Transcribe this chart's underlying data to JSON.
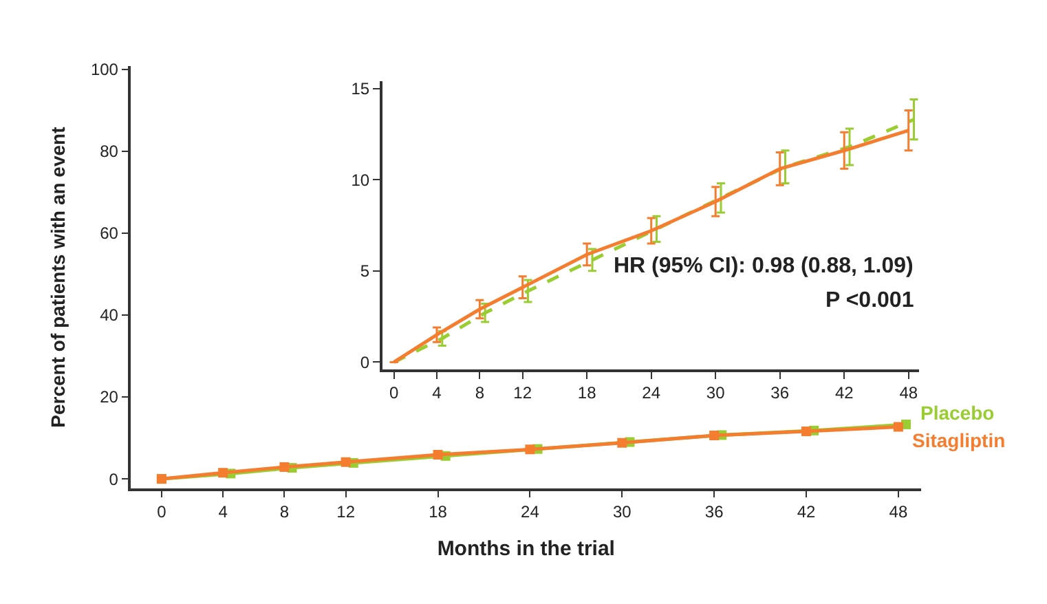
{
  "chart_data": [
    {
      "type": "line",
      "xlabel": "Months in the trial",
      "ylabel": "Percent of patients with an event",
      "xlim": [
        -2,
        49.5
      ],
      "ylim": [
        -2.3,
        100.7
      ],
      "xticks": [
        0,
        4,
        8,
        12,
        18,
        24,
        30,
        36,
        42,
        48
      ],
      "yticks": [
        0,
        20,
        40,
        60,
        80,
        100
      ],
      "marker": "square",
      "legend": false,
      "series": [
        {
          "name": "Placebo",
          "color": "#9acd32",
          "x": [
            0,
            4.5,
            8.5,
            12.5,
            18.5,
            24.5,
            30.5,
            36.5,
            42.5,
            48.5
          ],
          "values": [
            0,
            1.3,
            2.7,
            3.9,
            5.6,
            7.3,
            9.0,
            10.7,
            11.8,
            13.3
          ]
        },
        {
          "name": "Sitagliptin",
          "color": "#f47d30",
          "x": [
            0,
            4,
            8,
            12,
            18,
            24,
            30,
            36,
            42,
            48
          ],
          "values": [
            0,
            1.5,
            2.9,
            4.1,
            5.9,
            7.2,
            8.8,
            10.6,
            11.6,
            12.7
          ]
        }
      ]
    },
    {
      "type": "line",
      "xlim": [
        -1.1,
        49
      ],
      "ylim": [
        -0.4,
        15.4
      ],
      "xticks": [
        0,
        4,
        8,
        12,
        18,
        24,
        30,
        36,
        42,
        48
      ],
      "yticks": [
        0,
        5,
        10,
        15
      ],
      "marker": "none",
      "legend": false,
      "annotations": [
        "HR (95% CI): 0.98 (0.88, 1.09)",
        "P <0.001"
      ],
      "series": [
        {
          "color": "#9acd32",
          "line_style": "dashed",
          "x": [
            0,
            4.5,
            8.5,
            12.5,
            18.5,
            24.5,
            30.5,
            36.5,
            42.5,
            48.5
          ],
          "values": [
            0,
            1.3,
            2.7,
            3.9,
            5.6,
            7.3,
            9.0,
            10.7,
            11.8,
            13.3
          ],
          "errors": [
            null,
            0.4,
            0.5,
            0.6,
            0.6,
            0.7,
            0.8,
            0.9,
            1.0,
            1.1
          ]
        },
        {
          "color": "#f47d30",
          "line_style": "solid",
          "x": [
            0,
            4,
            8,
            12,
            18,
            24,
            30,
            36,
            42,
            48
          ],
          "values": [
            0,
            1.5,
            2.9,
            4.1,
            5.9,
            7.2,
            8.8,
            10.6,
            11.6,
            12.7
          ],
          "errors": [
            null,
            0.4,
            0.5,
            0.6,
            0.6,
            0.7,
            0.8,
            0.9,
            1.0,
            1.1
          ]
        }
      ]
    }
  ]
}
